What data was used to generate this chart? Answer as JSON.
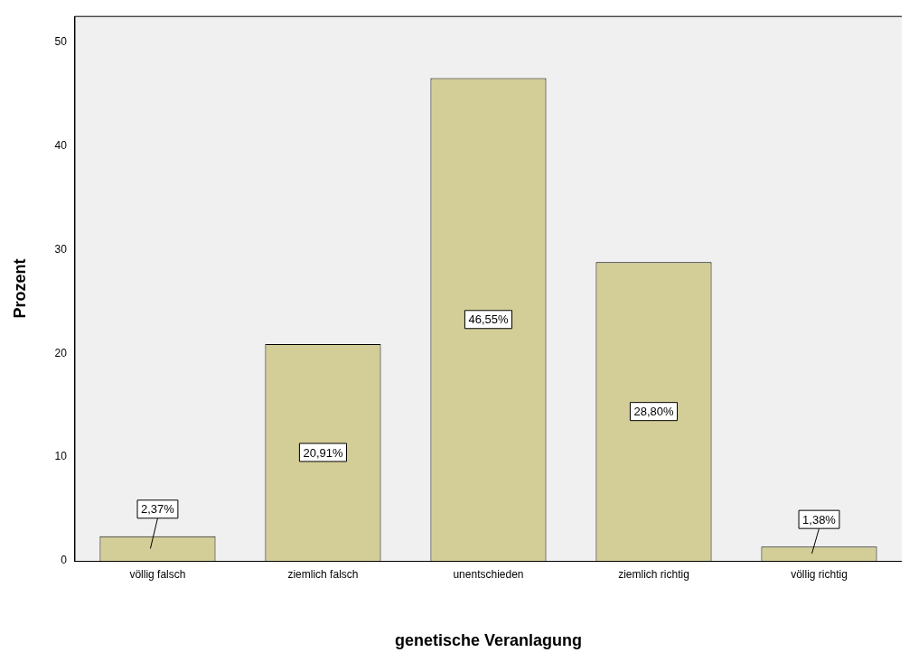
{
  "chart_data": {
    "type": "bar",
    "xlabel": "genetische Veranlagung",
    "ylabel": "Prozent",
    "categories": [
      "völlig falsch",
      "ziemlich falsch",
      "unentschieden",
      "ziemlich richtig",
      "völlig richtig"
    ],
    "values": [
      2.37,
      20.91,
      46.55,
      28.8,
      1.38
    ],
    "value_labels": [
      "2,37%",
      "20,91%",
      "46,55%",
      "28,80%",
      "1,38%"
    ],
    "color": "#d3ce97",
    "ylim": [
      0,
      52.5
    ],
    "yticks": [
      0,
      10,
      20,
      30,
      40,
      50
    ],
    "grid": false,
    "legend": false
  }
}
